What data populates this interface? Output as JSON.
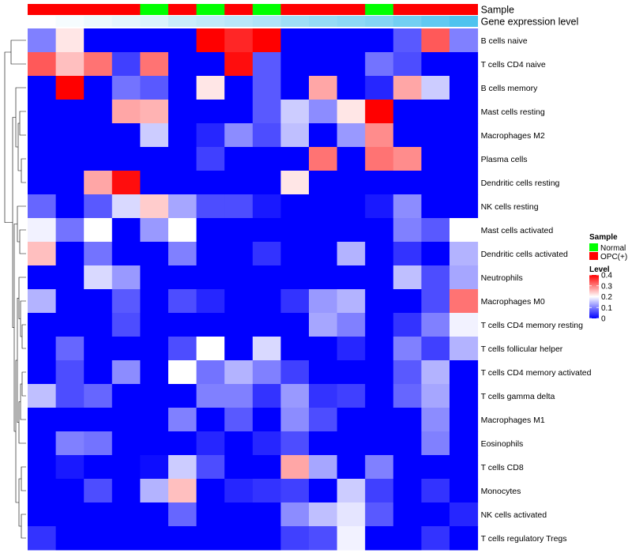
{
  "chart_data": {
    "type": "heatmap",
    "annotation_rows": [
      {
        "name": "Sample",
        "label": "Sample"
      },
      {
        "name": "Gene expression level",
        "label": "Gene expression level"
      }
    ],
    "sample_groups": [
      "O",
      "O",
      "O",
      "O",
      "N",
      "O",
      "N",
      "O",
      "N",
      "O",
      "O",
      "O",
      "N",
      "O",
      "O",
      "O"
    ],
    "expression_level": [
      0.0,
      0.05,
      0.1,
      0.15,
      0.2,
      0.3,
      0.35,
      0.4,
      0.45,
      0.55,
      0.6,
      0.65,
      0.7,
      0.8,
      0.9,
      1.0
    ],
    "rows": [
      "B cells naive",
      "T cells CD4 naive",
      "B cells memory",
      "Mast cells resting",
      "Macrophages M2",
      "Plasma cells",
      "Dendritic cells resting",
      "NK cells resting",
      "Mast cells activated",
      "Dendritic cells activated",
      "Neutrophils",
      "Macrophages M0",
      "T cells CD4 memory resting",
      "T cells follicular helper",
      "T cells CD4 memory activated",
      "T cells gamma delta",
      "Macrophages M1",
      "Eosinophils",
      "T cells CD8",
      "Monocytes",
      "NK cells activated",
      "T cells regulatory  Tregs"
    ],
    "values": [
      [
        0.1,
        0.22,
        0,
        0,
        0,
        0,
        0.4,
        0.37,
        0.4,
        0,
        0,
        0,
        0,
        0.07,
        0.33,
        0.1
      ],
      [
        0.33,
        0.25,
        0.31,
        0.05,
        0.31,
        0,
        0,
        0.39,
        0.07,
        0,
        0,
        0,
        0.09,
        0.06,
        0,
        0
      ],
      [
        0,
        0.4,
        0,
        0.09,
        0.07,
        0,
        0.22,
        0,
        0.07,
        0,
        0.27,
        0,
        0.03,
        0.27,
        0.16,
        0
      ],
      [
        0,
        0,
        0,
        0.27,
        0.26,
        0,
        0,
        0,
        0.07,
        0.16,
        0.11,
        0.22,
        0.4,
        0,
        0,
        0
      ],
      [
        0,
        0,
        0,
        0,
        0.16,
        0,
        0.03,
        0.11,
        0.06,
        0.15,
        0,
        0.12,
        0.29,
        0,
        0,
        0
      ],
      [
        0,
        0,
        0,
        0,
        0,
        0,
        0.05,
        0,
        0,
        0,
        0.31,
        0,
        0.31,
        0.29,
        0,
        0
      ],
      [
        0,
        0,
        0.27,
        0.39,
        0,
        0,
        0,
        0,
        0,
        0.22,
        0,
        0,
        0,
        0,
        0,
        0
      ],
      [
        0.08,
        0,
        0.07,
        0.17,
        0.24,
        0.13,
        0.06,
        0.06,
        0.02,
        0,
        0,
        0,
        0.02,
        0.11,
        0,
        0
      ],
      [
        0.19,
        0.09,
        0.2,
        0,
        0.12,
        0.2,
        0,
        0,
        0,
        0,
        0,
        0,
        0,
        0.1,
        0.07,
        0.2
      ],
      [
        0.25,
        0,
        0.09,
        0,
        0,
        0.1,
        0,
        0,
        0.04,
        0,
        0,
        0.14,
        0,
        0.04,
        0,
        0.14
      ],
      [
        0,
        0,
        0.17,
        0.12,
        0,
        0,
        0,
        0,
        0,
        0,
        0,
        0,
        0,
        0.15,
        0.06,
        0.13
      ],
      [
        0.14,
        0,
        0,
        0.07,
        0,
        0.06,
        0.03,
        0,
        0,
        0.04,
        0.12,
        0.14,
        0,
        0,
        0.06,
        0.31
      ],
      [
        0,
        0,
        0,
        0.06,
        0,
        0,
        0,
        0,
        0,
        0,
        0.13,
        0.1,
        0,
        0.04,
        0.1,
        0.19
      ],
      [
        0,
        0.08,
        0,
        0,
        0,
        0.06,
        0.2,
        0,
        0.17,
        0,
        0,
        0.03,
        0,
        0.1,
        0.05,
        0.14
      ],
      [
        0,
        0.06,
        0,
        0.11,
        0,
        0.2,
        0.09,
        0.14,
        0.1,
        0.05,
        0,
        0,
        0,
        0.07,
        0.14,
        0
      ],
      [
        0.15,
        0.06,
        0.08,
        0,
        0,
        0,
        0.1,
        0.1,
        0.04,
        0.12,
        0.04,
        0.05,
        0,
        0.08,
        0.13,
        0
      ],
      [
        0,
        0,
        0,
        0,
        0,
        0.1,
        0,
        0.07,
        0,
        0.11,
        0.06,
        0,
        0,
        0,
        0.11,
        0
      ],
      [
        0,
        0.1,
        0.09,
        0,
        0,
        0,
        0.03,
        0,
        0.03,
        0.06,
        0,
        0,
        0,
        0,
        0.1,
        0
      ],
      [
        0,
        0.02,
        0,
        0,
        0.01,
        0.16,
        0.06,
        0,
        0,
        0.27,
        0.13,
        0,
        0.1,
        0,
        0,
        0
      ],
      [
        0,
        0,
        0.06,
        0,
        0.14,
        0.25,
        0,
        0.03,
        0.04,
        0.05,
        0,
        0.16,
        0.05,
        0,
        0.04,
        0
      ],
      [
        0,
        0,
        0,
        0,
        0,
        0.08,
        0,
        0,
        0,
        0.11,
        0.15,
        0.18,
        0.07,
        0,
        0,
        0.03
      ],
      [
        0.04,
        0,
        0,
        0,
        0,
        0,
        0,
        0,
        0,
        0.05,
        0.06,
        0.19,
        0,
        0,
        0.04,
        0
      ]
    ],
    "legend": {
      "sample_title": "Sample",
      "sample_items": [
        {
          "label": "Normal",
          "color": "#00ff00"
        },
        {
          "label": "OPC(+)",
          "color": "#ff0000"
        }
      ],
      "level_title": "Level",
      "level_ticks": [
        "0.4",
        "0.3",
        "0.2",
        "0.1",
        "0"
      ],
      "level_tick_values": [
        0.4,
        0.3,
        0.2,
        0.1,
        0
      ],
      "range": [
        0,
        0.4
      ]
    },
    "colors": {
      "low": "#0000ff",
      "mid": "#ffffff",
      "high": "#ff0000",
      "normal": "#00ff00",
      "opc": "#ff0000",
      "level_low": "#ffffff",
      "level_high": "#4fc3ef"
    }
  }
}
